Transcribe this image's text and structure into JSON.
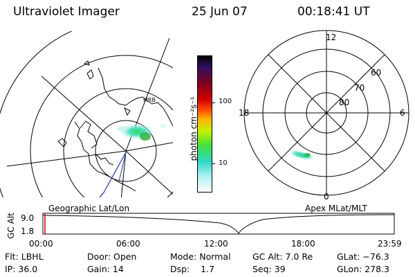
{
  "header": {
    "title": "Ultraviolet Imager",
    "date": "25 Jun 07",
    "time": "00:18:41 UT"
  },
  "geo_map": {
    "label": "Geographic Lat/Lon",
    "coast_label": "MRB"
  },
  "colorbar": {
    "label": "photon cm⁻²s⁻¹",
    "ticks": [
      "100",
      "10"
    ],
    "scale": "log",
    "colors": [
      "#ffffff",
      "#a8f0f0",
      "#30d8c8",
      "#40e040",
      "#c8f000",
      "#ffb000",
      "#ff5000",
      "#d00000",
      "#800020",
      "#301060",
      "#000000"
    ]
  },
  "polar_plot": {
    "label": "Apex MLat/MLT",
    "mlt_labels": {
      "top": "12",
      "left": "18",
      "right": "6",
      "bottom": "0"
    },
    "lat_labels": [
      "60",
      "70",
      "80"
    ]
  },
  "timeline": {
    "ylabel": "GC Alt",
    "y_ticks": [
      "9.0",
      "1.8"
    ],
    "x_ticks": [
      "00:00",
      "06:00",
      "12:00",
      "18:00",
      "23:59"
    ]
  },
  "info": {
    "filter": "Flt: LBHL",
    "ip": "IP: 36.0",
    "door": "Door: Open",
    "gain": "Gain: 14",
    "mode": "Mode: Normal",
    "dsp": "Dsp:    1.7",
    "gc_alt": "GC Alt: 7.0 Re",
    "seq": "Seq: 39",
    "glat": "GLat: −76.3",
    "glon": "GLon: 278.3"
  }
}
